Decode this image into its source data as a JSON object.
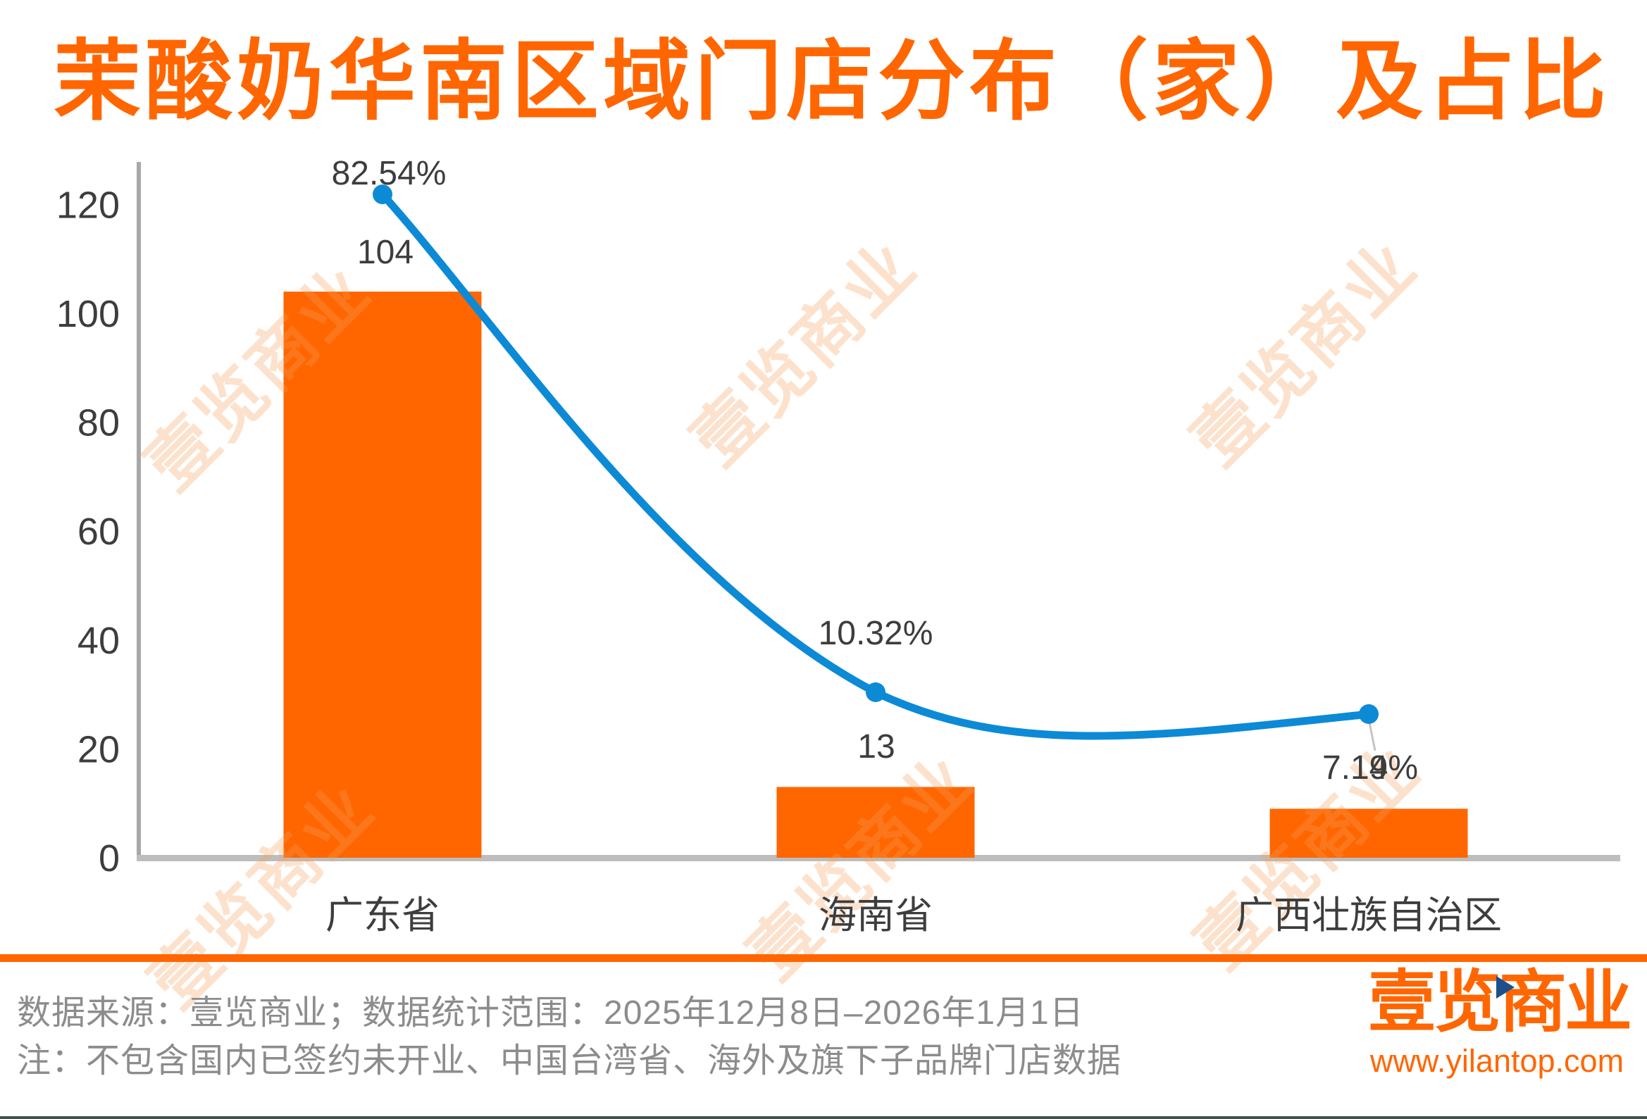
{
  "title": "茉酸奶华南区域门店分布（家）及占比",
  "chart_data": {
    "type": "combo-bar-line-pareto",
    "title": "茉酸奶华南区域门店分布（家）及占比",
    "categories": [
      "广东省",
      "海南省",
      "广西壮族自治区"
    ],
    "series": [
      {
        "name_visible": false,
        "type": "bar",
        "values": [
          104,
          13,
          9
        ],
        "labels": [
          "104",
          "13",
          "9"
        ],
        "color": "#FF6600"
      },
      {
        "name_visible": false,
        "type": "line",
        "values": [
          82.54,
          10.32,
          7.14
        ],
        "labels": [
          "82.54%",
          "10.32%",
          "7.14%"
        ],
        "color": "#0C8AD6"
      }
    ],
    "xlabel": "",
    "ylabel": "",
    "ylim": [
      0,
      120
    ],
    "yticks": [
      "0",
      "20",
      "40",
      "60",
      "80",
      "100",
      "120"
    ],
    "grid": false,
    "legend": "none"
  },
  "watermark": {
    "text": "壹览商业"
  },
  "footer": {
    "source_line": "数据来源：壹览商业；数据统计范围：2025年12月8日–2026年1月1日",
    "note_line": "注：不包含国内已签约未开业、中国台湾省、海外及旗下子品牌门店数据"
  },
  "logo": {
    "brand": "壹览商业",
    "url": "www.yilantop.com"
  },
  "colors": {
    "accent_orange": "#FF6600",
    "line_blue": "#0C8AD6",
    "axis_gray": "#A8A8A8",
    "baseline_gray": "#BDBDBD",
    "label_dark": "#3D3D3D",
    "footer_gray": "#8C8C8C",
    "triangle_blue": "#1F4E8C",
    "watermark_orange": "rgba(246,160,90,0.30)"
  }
}
